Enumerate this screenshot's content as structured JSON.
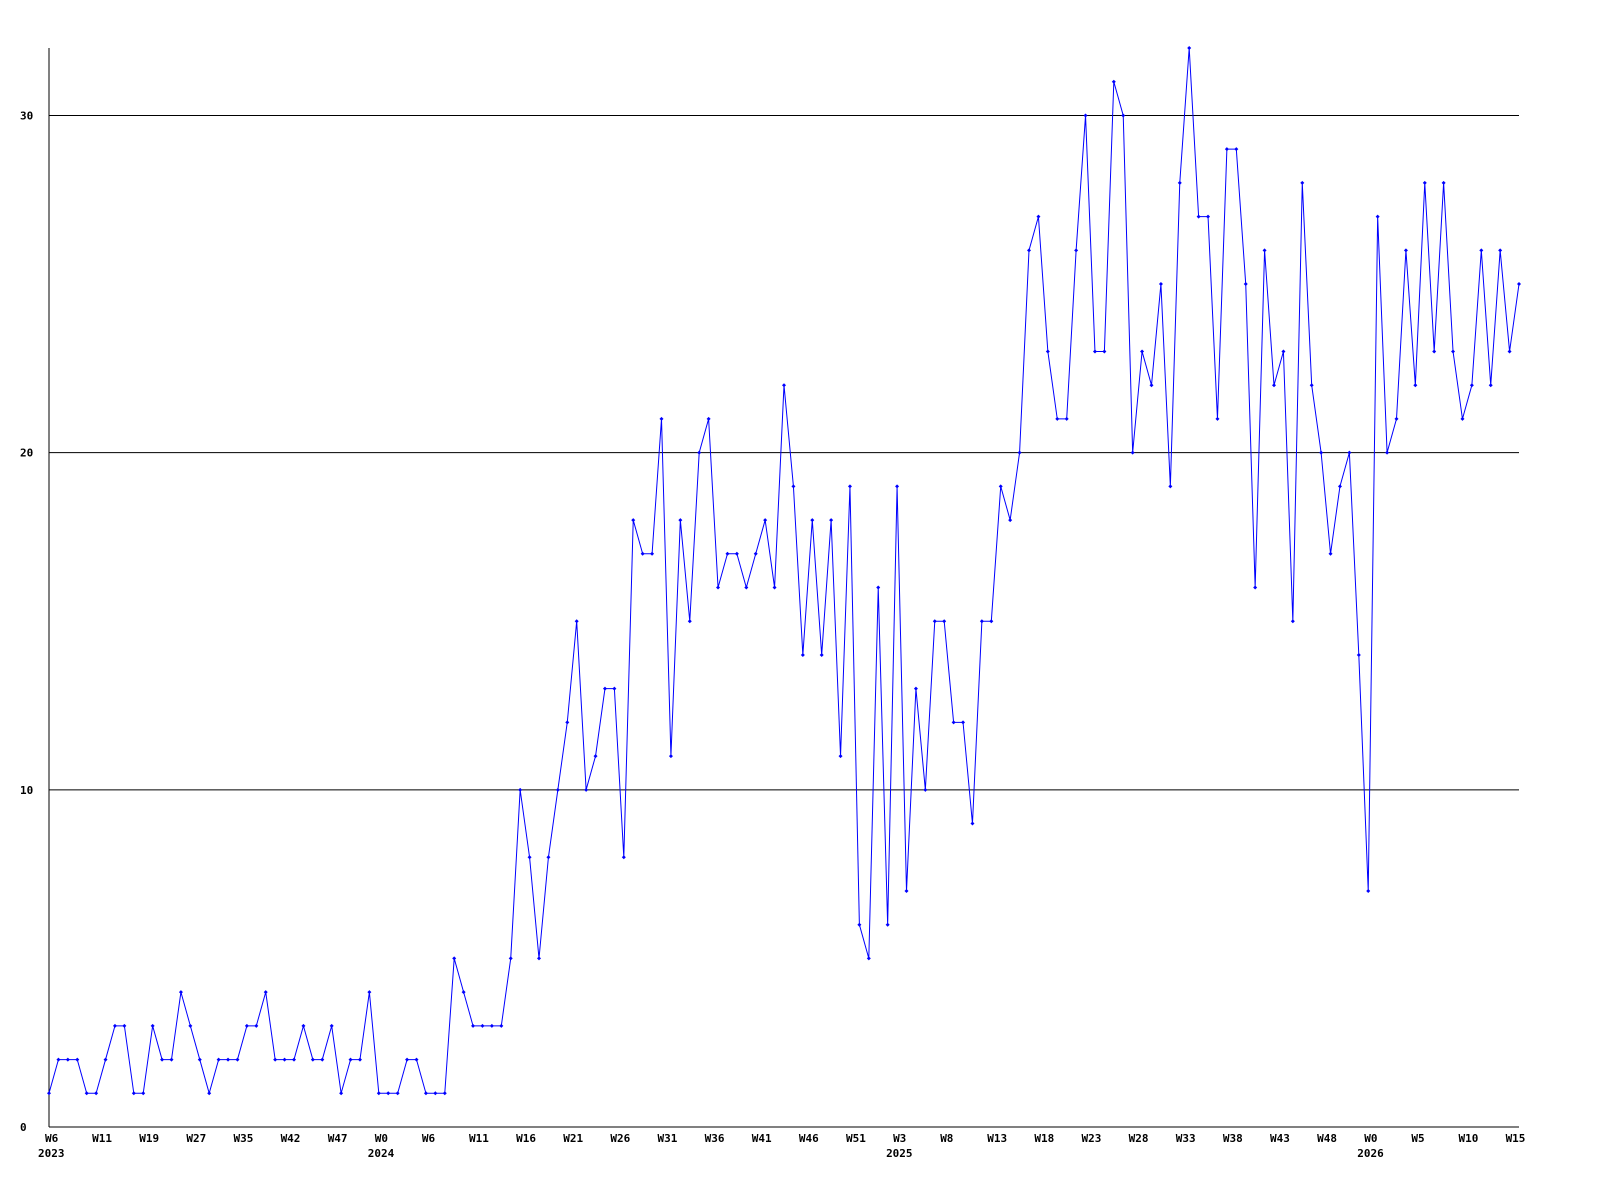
{
  "chart_data": {
    "type": "line",
    "categories": [
      "W6",
      null,
      null,
      null,
      null,
      "W11",
      null,
      null,
      null,
      null,
      "W19",
      null,
      null,
      null,
      null,
      "W27",
      null,
      null,
      null,
      null,
      "W35",
      null,
      null,
      null,
      null,
      "W42",
      null,
      null,
      null,
      null,
      "W47",
      null,
      null,
      null,
      null,
      "W0",
      null,
      null,
      null,
      null,
      "W6",
      null,
      null,
      null,
      null,
      "W11",
      null,
      null,
      null,
      null,
      "W16",
      null,
      null,
      null,
      null,
      "W21",
      null,
      null,
      null,
      null,
      "W26",
      null,
      null,
      null,
      null,
      "W31",
      null,
      null,
      null,
      null,
      "W36",
      null,
      null,
      null,
      null,
      "W41",
      null,
      null,
      null,
      null,
      "W46",
      null,
      null,
      null,
      null,
      "W51",
      null,
      null,
      null,
      null,
      "W3",
      null,
      null,
      null,
      null,
      "W8",
      null,
      null,
      null,
      null,
      "W13",
      null,
      null,
      null,
      null,
      "W18",
      null,
      null,
      null,
      null,
      "W23",
      null,
      null,
      null,
      null,
      "W28",
      null,
      null,
      null,
      null,
      "W33",
      null,
      null,
      null,
      null,
      "W38",
      null,
      null,
      null,
      null,
      "W43",
      null,
      null,
      null,
      null,
      "W48",
      null,
      null,
      null,
      null,
      "W0",
      null,
      null,
      null,
      null,
      "W5",
      null,
      null,
      null,
      null,
      "W10",
      null,
      null,
      null,
      null,
      "W15",
      null
    ],
    "years": [
      "2023",
      null,
      null,
      null,
      null,
      null,
      null,
      null,
      null,
      null,
      null,
      null,
      null,
      null,
      null,
      null,
      null,
      null,
      null,
      null,
      null,
      null,
      null,
      null,
      null,
      null,
      null,
      null,
      null,
      null,
      null,
      null,
      null,
      null,
      null,
      "2024",
      null,
      null,
      null,
      null,
      null,
      null,
      null,
      null,
      null,
      null,
      null,
      null,
      null,
      null,
      null,
      null,
      null,
      null,
      null,
      null,
      null,
      null,
      null,
      null,
      null,
      null,
      null,
      null,
      null,
      null,
      null,
      null,
      null,
      null,
      null,
      null,
      null,
      null,
      null,
      null,
      null,
      null,
      null,
      null,
      null,
      null,
      null,
      null,
      null,
      null,
      null,
      null,
      null,
      null,
      "2025",
      null,
      null,
      null,
      null,
      null,
      null,
      null,
      null,
      null,
      null,
      null,
      null,
      null,
      null,
      null,
      null,
      null,
      null,
      null,
      null,
      null,
      null,
      null,
      null,
      null,
      null,
      null,
      null,
      null,
      null,
      null,
      null,
      null,
      null,
      null,
      null,
      null,
      null,
      null,
      null,
      null,
      null,
      null,
      null,
      null,
      null,
      null,
      null,
      null,
      "2026",
      null,
      null,
      null,
      null,
      null,
      null,
      null,
      null,
      null,
      null,
      null,
      null,
      null,
      null,
      null,
      null
    ],
    "series": [
      {
        "color": "#0000ff",
        "values": [
          1,
          2,
          2,
          2,
          1,
          1,
          2,
          3,
          3,
          1,
          1,
          3,
          2,
          2,
          4,
          3,
          2,
          1,
          2,
          2,
          2,
          3,
          3,
          4,
          2,
          2,
          2,
          3,
          2,
          2,
          3,
          1,
          2,
          2,
          4,
          1,
          1,
          1,
          2,
          2,
          1,
          1,
          1,
          5,
          4,
          3,
          3,
          3,
          3,
          5,
          10,
          8,
          5,
          8,
          10,
          12,
          15,
          10,
          11,
          13,
          13,
          8,
          18,
          17,
          17,
          21,
          11,
          18,
          15,
          20,
          21,
          16,
          17,
          17,
          16,
          17,
          18,
          16,
          22,
          19,
          14,
          18,
          14,
          18,
          11,
          19,
          6,
          5,
          16,
          6,
          19,
          7,
          13,
          10,
          15,
          15,
          12,
          12,
          9,
          15,
          15,
          19,
          18,
          20,
          26,
          27,
          23,
          21,
          21,
          26,
          30,
          23,
          23,
          31,
          30,
          20,
          23,
          22,
          25,
          19,
          28,
          32,
          27,
          27,
          21,
          29,
          29,
          25,
          16,
          26,
          22,
          23,
          15,
          28,
          22,
          20,
          17,
          19,
          20,
          14,
          7,
          27,
          20,
          21,
          26,
          22,
          28,
          23,
          28,
          23,
          21,
          22,
          26,
          22,
          26,
          23,
          25
        ]
      }
    ],
    "ylim": [
      0,
      32
    ],
    "yticks": [
      0,
      10,
      20,
      30
    ],
    "grid": true
  }
}
